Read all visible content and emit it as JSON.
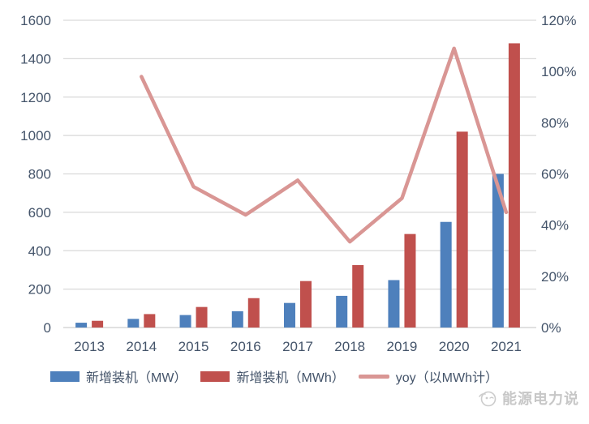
{
  "chart_data": {
    "type": "combo-bar-line",
    "categories": [
      "2013",
      "2014",
      "2015",
      "2016",
      "2017",
      "2018",
      "2019",
      "2020",
      "2021"
    ],
    "series": [
      {
        "name": "新增装机（MW）",
        "type": "bar",
        "axis": "left",
        "color": "#4E80BC",
        "values": [
          25,
          45,
          65,
          85,
          128,
          165,
          247,
          550,
          800
        ]
      },
      {
        "name": "新增装机（MWh）",
        "type": "bar",
        "axis": "left",
        "color": "#C0504D",
        "values": [
          35,
          70,
          107,
          153,
          242,
          325,
          487,
          1020,
          1480
        ]
      },
      {
        "name": "yoy（以MWh计）",
        "type": "line",
        "axis": "right",
        "color": "#D99694",
        "values": [
          null,
          98,
          55,
          44,
          57.5,
          33.5,
          50.5,
          109,
          45
        ]
      }
    ],
    "left_axis": {
      "min": 0,
      "max": 1600,
      "step": 200,
      "ticks": [
        "0",
        "200",
        "400",
        "600",
        "800",
        "1000",
        "1200",
        "1400",
        "1600"
      ]
    },
    "right_axis": {
      "min": 0,
      "max": 120,
      "step": 20,
      "ticks": [
        "0%",
        "20%",
        "40%",
        "60%",
        "80%",
        "100%",
        "120%"
      ]
    },
    "grid": true,
    "legend_position": "bottom"
  },
  "colors": {
    "axis_text": "#44546A",
    "gridline": "#D9D9D9",
    "baseline": "#CFCFCF"
  },
  "watermark": {
    "text": "能源电力说"
  }
}
